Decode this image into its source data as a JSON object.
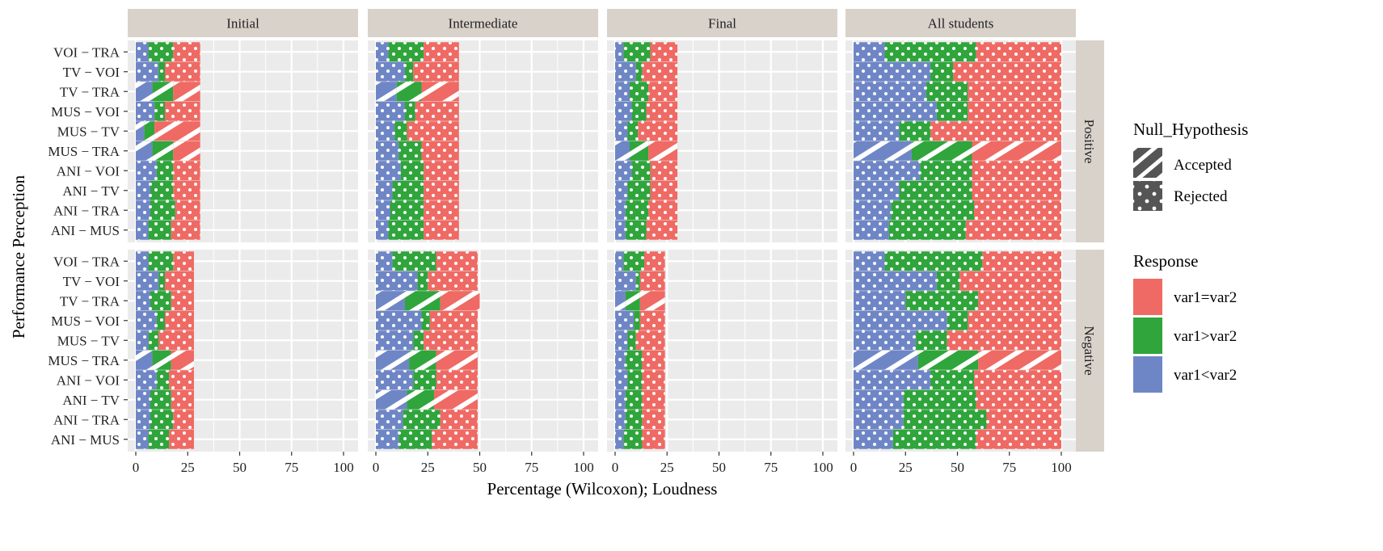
{
  "chart_data": {
    "type": "bar",
    "orientation": "horizontal-stacked",
    "facet_columns": [
      "Initial",
      "Intermediate",
      "Final",
      "All students"
    ],
    "facet_rows": [
      "Positive",
      "Negative"
    ],
    "categories": [
      "VOI − TRA",
      "TV − VOI",
      "TV − TRA",
      "MUS − VOI",
      "MUS − TV",
      "MUS − TRA",
      "ANI − VOI",
      "ANI − TV",
      "ANI − TRA",
      "ANI − MUS"
    ],
    "xlabel": "Percentage (Wilcoxon); Loudness",
    "ylabel": "Performance Perception",
    "xlim": [
      0,
      100
    ],
    "xticks": [
      0,
      25,
      50,
      75,
      100
    ],
    "stack_order": [
      "var1<var2",
      "var1>var2",
      "var1=var2"
    ],
    "panels": [
      {
        "col": "Initial",
        "row": "Positive",
        "values": [
          [
            6,
            12,
            13
          ],
          [
            11,
            3,
            17
          ],
          [
            8,
            10,
            13
          ],
          [
            9,
            5,
            17
          ],
          [
            4,
            5,
            22
          ],
          [
            8,
            10,
            13
          ],
          [
            10,
            8,
            13
          ],
          [
            7,
            11,
            13
          ],
          [
            7,
            12,
            12
          ],
          [
            6,
            11,
            14
          ]
        ],
        "null_hypothesis": [
          "Rejected",
          "Rejected",
          "Accepted",
          "Rejected",
          "Accepted",
          "Accepted",
          "Rejected",
          "Rejected",
          "Rejected",
          "Rejected"
        ]
      },
      {
        "col": "Intermediate",
        "row": "Positive",
        "values": [
          [
            6,
            17,
            17
          ],
          [
            14,
            4,
            22
          ],
          [
            10,
            12,
            18
          ],
          [
            14,
            5,
            21
          ],
          [
            9,
            6,
            25
          ],
          [
            11,
            11,
            18
          ],
          [
            12,
            11,
            17
          ],
          [
            8,
            15,
            17
          ],
          [
            7,
            16,
            17
          ],
          [
            6,
            17,
            17
          ]
        ],
        "null_hypothesis": [
          "Rejected",
          "Rejected",
          "Accepted",
          "Rejected",
          "Rejected",
          "Rejected",
          "Rejected",
          "Rejected",
          "Rejected",
          "Rejected"
        ]
      },
      {
        "col": "Final",
        "row": "Positive",
        "values": [
          [
            4,
            13,
            13
          ],
          [
            10,
            3,
            17
          ],
          [
            7,
            9,
            14
          ],
          [
            8,
            7,
            15
          ],
          [
            6,
            5,
            19
          ],
          [
            7,
            9,
            14
          ],
          [
            8,
            9,
            13
          ],
          [
            6,
            11,
            13
          ],
          [
            5,
            11,
            14
          ],
          [
            5,
            10,
            15
          ]
        ],
        "null_hypothesis": [
          "Rejected",
          "Rejected",
          "Rejected",
          "Rejected",
          "Rejected",
          "Accepted",
          "Rejected",
          "Rejected",
          "Rejected",
          "Rejected"
        ]
      },
      {
        "col": "All students",
        "row": "Positive",
        "values": [
          [
            15,
            44,
            41
          ],
          [
            37,
            11,
            52
          ],
          [
            35,
            20,
            45
          ],
          [
            40,
            15,
            45
          ],
          [
            22,
            15,
            63
          ],
          [
            28,
            29,
            43
          ],
          [
            32,
            25,
            43
          ],
          [
            22,
            35,
            43
          ],
          [
            18,
            40,
            42
          ],
          [
            17,
            37,
            46
          ]
        ],
        "null_hypothesis": [
          "Rejected",
          "Rejected",
          "Rejected",
          "Rejected",
          "Rejected",
          "Accepted",
          "Rejected",
          "Rejected",
          "Rejected",
          "Rejected"
        ]
      },
      {
        "col": "Initial",
        "row": "Negative",
        "values": [
          [
            6,
            12,
            10
          ],
          [
            11,
            3,
            14
          ],
          [
            7,
            10,
            11
          ],
          [
            10,
            4,
            14
          ],
          [
            6,
            5,
            17
          ],
          [
            8,
            9,
            11
          ],
          [
            10,
            6,
            12
          ],
          [
            7,
            10,
            11
          ],
          [
            7,
            11,
            10
          ],
          [
            6,
            10,
            12
          ]
        ],
        "null_hypothesis": [
          "Rejected",
          "Rejected",
          "Rejected",
          "Rejected",
          "Rejected",
          "Accepted",
          "Rejected",
          "Rejected",
          "Rejected",
          "Rejected"
        ]
      },
      {
        "col": "Intermediate",
        "row": "Negative",
        "values": [
          [
            8,
            21,
            20
          ],
          [
            20,
            5,
            24
          ],
          [
            14,
            17,
            19
          ],
          [
            22,
            4,
            23
          ],
          [
            18,
            5,
            26
          ],
          [
            16,
            13,
            20
          ],
          [
            18,
            11,
            20
          ],
          [
            15,
            13,
            21
          ],
          [
            13,
            18,
            18
          ],
          [
            11,
            16,
            22
          ]
        ],
        "null_hypothesis": [
          "Rejected",
          "Rejected",
          "Accepted",
          "Rejected",
          "Rejected",
          "Accepted",
          "Rejected",
          "Accepted",
          "Rejected",
          "Rejected"
        ]
      },
      {
        "col": "Final",
        "row": "Negative",
        "values": [
          [
            4,
            10,
            10
          ],
          [
            10,
            2,
            12
          ],
          [
            5,
            7,
            12
          ],
          [
            9,
            3,
            12
          ],
          [
            6,
            4,
            14
          ],
          [
            5,
            8,
            11
          ],
          [
            6,
            7,
            11
          ],
          [
            5,
            8,
            11
          ],
          [
            5,
            8,
            11
          ],
          [
            4,
            9,
            11
          ]
        ],
        "null_hypothesis": [
          "Rejected",
          "Rejected",
          "Accepted",
          "Rejected",
          "Rejected",
          "Rejected",
          "Rejected",
          "Rejected",
          "Rejected",
          "Rejected"
        ]
      },
      {
        "col": "All students",
        "row": "Negative",
        "values": [
          [
            15,
            47,
            38
          ],
          [
            40,
            11,
            49
          ],
          [
            25,
            35,
            40
          ],
          [
            45,
            10,
            45
          ],
          [
            30,
            15,
            55
          ],
          [
            31,
            29,
            40
          ],
          [
            37,
            21,
            42
          ],
          [
            24,
            35,
            41
          ],
          [
            24,
            40,
            36
          ],
          [
            19,
            40,
            41
          ]
        ],
        "null_hypothesis": [
          "Rejected",
          "Rejected",
          "Rejected",
          "Rejected",
          "Rejected",
          "Accepted",
          "Rejected",
          "Rejected",
          "Rejected",
          "Rejected"
        ]
      }
    ],
    "legend": {
      "null_hypothesis_title": "Null_Hypothesis",
      "null_hypothesis_items": [
        "Accepted",
        "Rejected"
      ],
      "response_title": "Response",
      "response_items": [
        "var1=var2",
        "var1>var2",
        "var1<var2"
      ],
      "position": "right"
    },
    "colors": {
      "var1<var2": "#6f86c6",
      "var1>var2": "#2fa53c",
      "var1=var2": "#ef6a64",
      "panel_bg": "#ebebeb",
      "strip_bg": "#d9d2cb",
      "legend_key_fill": "#555555"
    }
  }
}
